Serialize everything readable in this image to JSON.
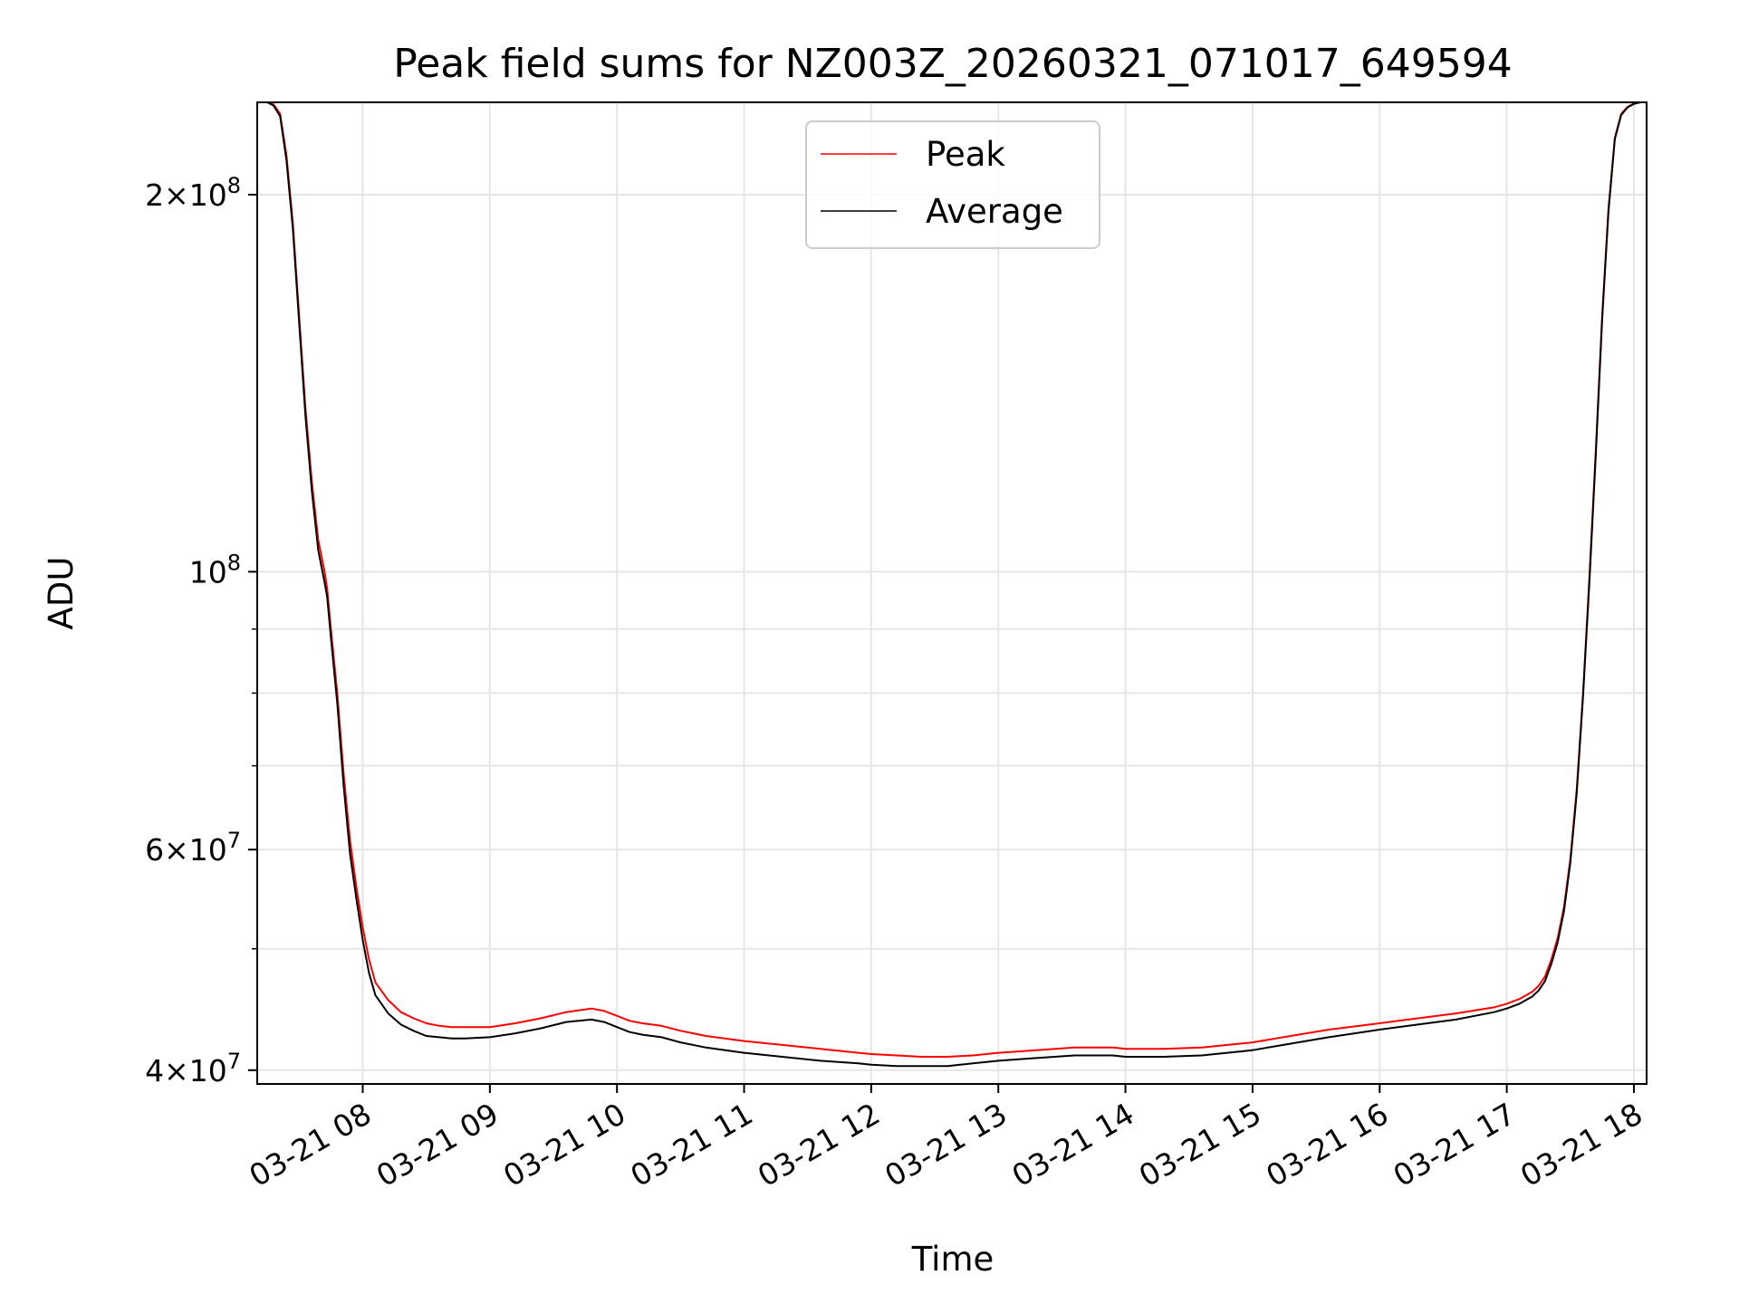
{
  "chart_data": {
    "type": "line",
    "title": "Peak field sums for NZ003Z_20260321_071017_649594",
    "xlabel": "Time",
    "ylabel": "ADU",
    "yscale": "log",
    "ylim": [
      39000000,
      237000000
    ],
    "xlim_hours": [
      7.17,
      18.1
    ],
    "grid": true,
    "legend_position": "upper center",
    "x_ticks": [
      {
        "hour": 8,
        "label": "03-21 08"
      },
      {
        "hour": 9,
        "label": "03-21 09"
      },
      {
        "hour": 10,
        "label": "03-21 10"
      },
      {
        "hour": 11,
        "label": "03-21 11"
      },
      {
        "hour": 12,
        "label": "03-21 12"
      },
      {
        "hour": 13,
        "label": "03-21 13"
      },
      {
        "hour": 14,
        "label": "03-21 14"
      },
      {
        "hour": 15,
        "label": "03-21 15"
      },
      {
        "hour": 16,
        "label": "03-21 16"
      },
      {
        "hour": 17,
        "label": "03-21 17"
      },
      {
        "hour": 18,
        "label": "03-21 18"
      }
    ],
    "y_major_ticks": [
      {
        "value": 40000000,
        "mantissa": "4",
        "exponent": "7"
      },
      {
        "value": 60000000,
        "mantissa": "6",
        "exponent": "7"
      },
      {
        "value": 100000000,
        "mantissa": "",
        "exponent": "8"
      },
      {
        "value": 200000000,
        "mantissa": "2",
        "exponent": "8"
      }
    ],
    "y_minor_grid": [
      50000000,
      70000000,
      80000000,
      90000000
    ],
    "series": [
      {
        "name": "Peak",
        "color": "#ff0000",
        "x_hours": [
          7.17,
          7.25,
          7.3,
          7.35,
          7.4,
          7.45,
          7.5,
          7.55,
          7.6,
          7.65,
          7.7,
          7.72,
          7.75,
          7.8,
          7.85,
          7.9,
          7.95,
          8.0,
          8.05,
          8.1,
          8.2,
          8.3,
          8.4,
          8.5,
          8.6,
          8.7,
          8.8,
          9.0,
          9.2,
          9.4,
          9.6,
          9.8,
          9.9,
          10.0,
          10.1,
          10.2,
          10.35,
          10.5,
          10.7,
          11.0,
          11.3,
          11.6,
          11.9,
          12.0,
          12.2,
          12.4,
          12.6,
          12.8,
          13.0,
          13.3,
          13.6,
          13.9,
          14.0,
          14.3,
          14.6,
          15.0,
          15.3,
          15.6,
          16.0,
          16.3,
          16.6,
          16.9,
          17.0,
          17.1,
          17.2,
          17.25,
          17.3,
          17.35,
          17.4,
          17.45,
          17.5,
          17.55,
          17.6,
          17.65,
          17.7,
          17.75,
          17.8,
          17.85,
          17.9,
          17.95,
          18.0,
          18.05,
          18.1
        ],
        "values": [
          237000000,
          237000000,
          236000000,
          232000000,
          215000000,
          190000000,
          160000000,
          135000000,
          118000000,
          106000000,
          100000000,
          97000000,
          90000000,
          80000000,
          69000000,
          61000000,
          56000000,
          52000000,
          49000000,
          47000000,
          45500000,
          44500000,
          44000000,
          43600000,
          43400000,
          43300000,
          43300000,
          43300000,
          43600000,
          44000000,
          44500000,
          44800000,
          44600000,
          44200000,
          43800000,
          43600000,
          43400000,
          43000000,
          42600000,
          42200000,
          41900000,
          41600000,
          41300000,
          41200000,
          41100000,
          41000000,
          41000000,
          41100000,
          41300000,
          41500000,
          41700000,
          41700000,
          41600000,
          41600000,
          41700000,
          42100000,
          42600000,
          43100000,
          43600000,
          44000000,
          44400000,
          44900000,
          45200000,
          45600000,
          46200000,
          46700000,
          47500000,
          49000000,
          51000000,
          54000000,
          59000000,
          67000000,
          80000000,
          99000000,
          125000000,
          160000000,
          195000000,
          222000000,
          232000000,
          235000000,
          236500000,
          237000000,
          237000000
        ]
      },
      {
        "name": "Average",
        "color": "#000000",
        "x_hours": [
          7.17,
          7.25,
          7.3,
          7.35,
          7.4,
          7.45,
          7.5,
          7.55,
          7.6,
          7.65,
          7.7,
          7.72,
          7.75,
          7.8,
          7.85,
          7.9,
          7.95,
          8.0,
          8.05,
          8.1,
          8.2,
          8.3,
          8.4,
          8.5,
          8.6,
          8.7,
          8.8,
          9.0,
          9.2,
          9.4,
          9.6,
          9.8,
          9.9,
          10.0,
          10.1,
          10.2,
          10.35,
          10.5,
          10.7,
          11.0,
          11.3,
          11.6,
          11.9,
          12.0,
          12.2,
          12.4,
          12.6,
          12.8,
          13.0,
          13.3,
          13.6,
          13.9,
          14.0,
          14.3,
          14.6,
          15.0,
          15.3,
          15.6,
          16.0,
          16.3,
          16.6,
          16.9,
          17.0,
          17.1,
          17.2,
          17.25,
          17.3,
          17.35,
          17.4,
          17.45,
          17.5,
          17.55,
          17.6,
          17.65,
          17.7,
          17.75,
          17.8,
          17.85,
          17.9,
          17.95,
          18.0,
          18.05,
          18.1
        ],
        "values": [
          237000000,
          237000000,
          235500000,
          231000000,
          213000000,
          188000000,
          158000000,
          133000000,
          116000000,
          104000000,
          98000000,
          95500000,
          88500000,
          78500000,
          67500000,
          59500000,
          54800000,
          50800000,
          47800000,
          45900000,
          44400000,
          43500000,
          43000000,
          42600000,
          42500000,
          42400000,
          42400000,
          42500000,
          42800000,
          43200000,
          43700000,
          43900000,
          43700000,
          43300000,
          42900000,
          42700000,
          42500000,
          42100000,
          41700000,
          41300000,
          41000000,
          40700000,
          40500000,
          40400000,
          40300000,
          40300000,
          40300000,
          40500000,
          40700000,
          40900000,
          41100000,
          41100000,
          41000000,
          41000000,
          41100000,
          41500000,
          42000000,
          42500000,
          43100000,
          43500000,
          43900000,
          44500000,
          44800000,
          45200000,
          45800000,
          46300000,
          47100000,
          48600000,
          50600000,
          53600000,
          58600000,
          66500000,
          79500000,
          98000000,
          124000000,
          159000000,
          194000000,
          221500000,
          231500000,
          234800000,
          236300000,
          237000000,
          237000000
        ]
      }
    ]
  }
}
